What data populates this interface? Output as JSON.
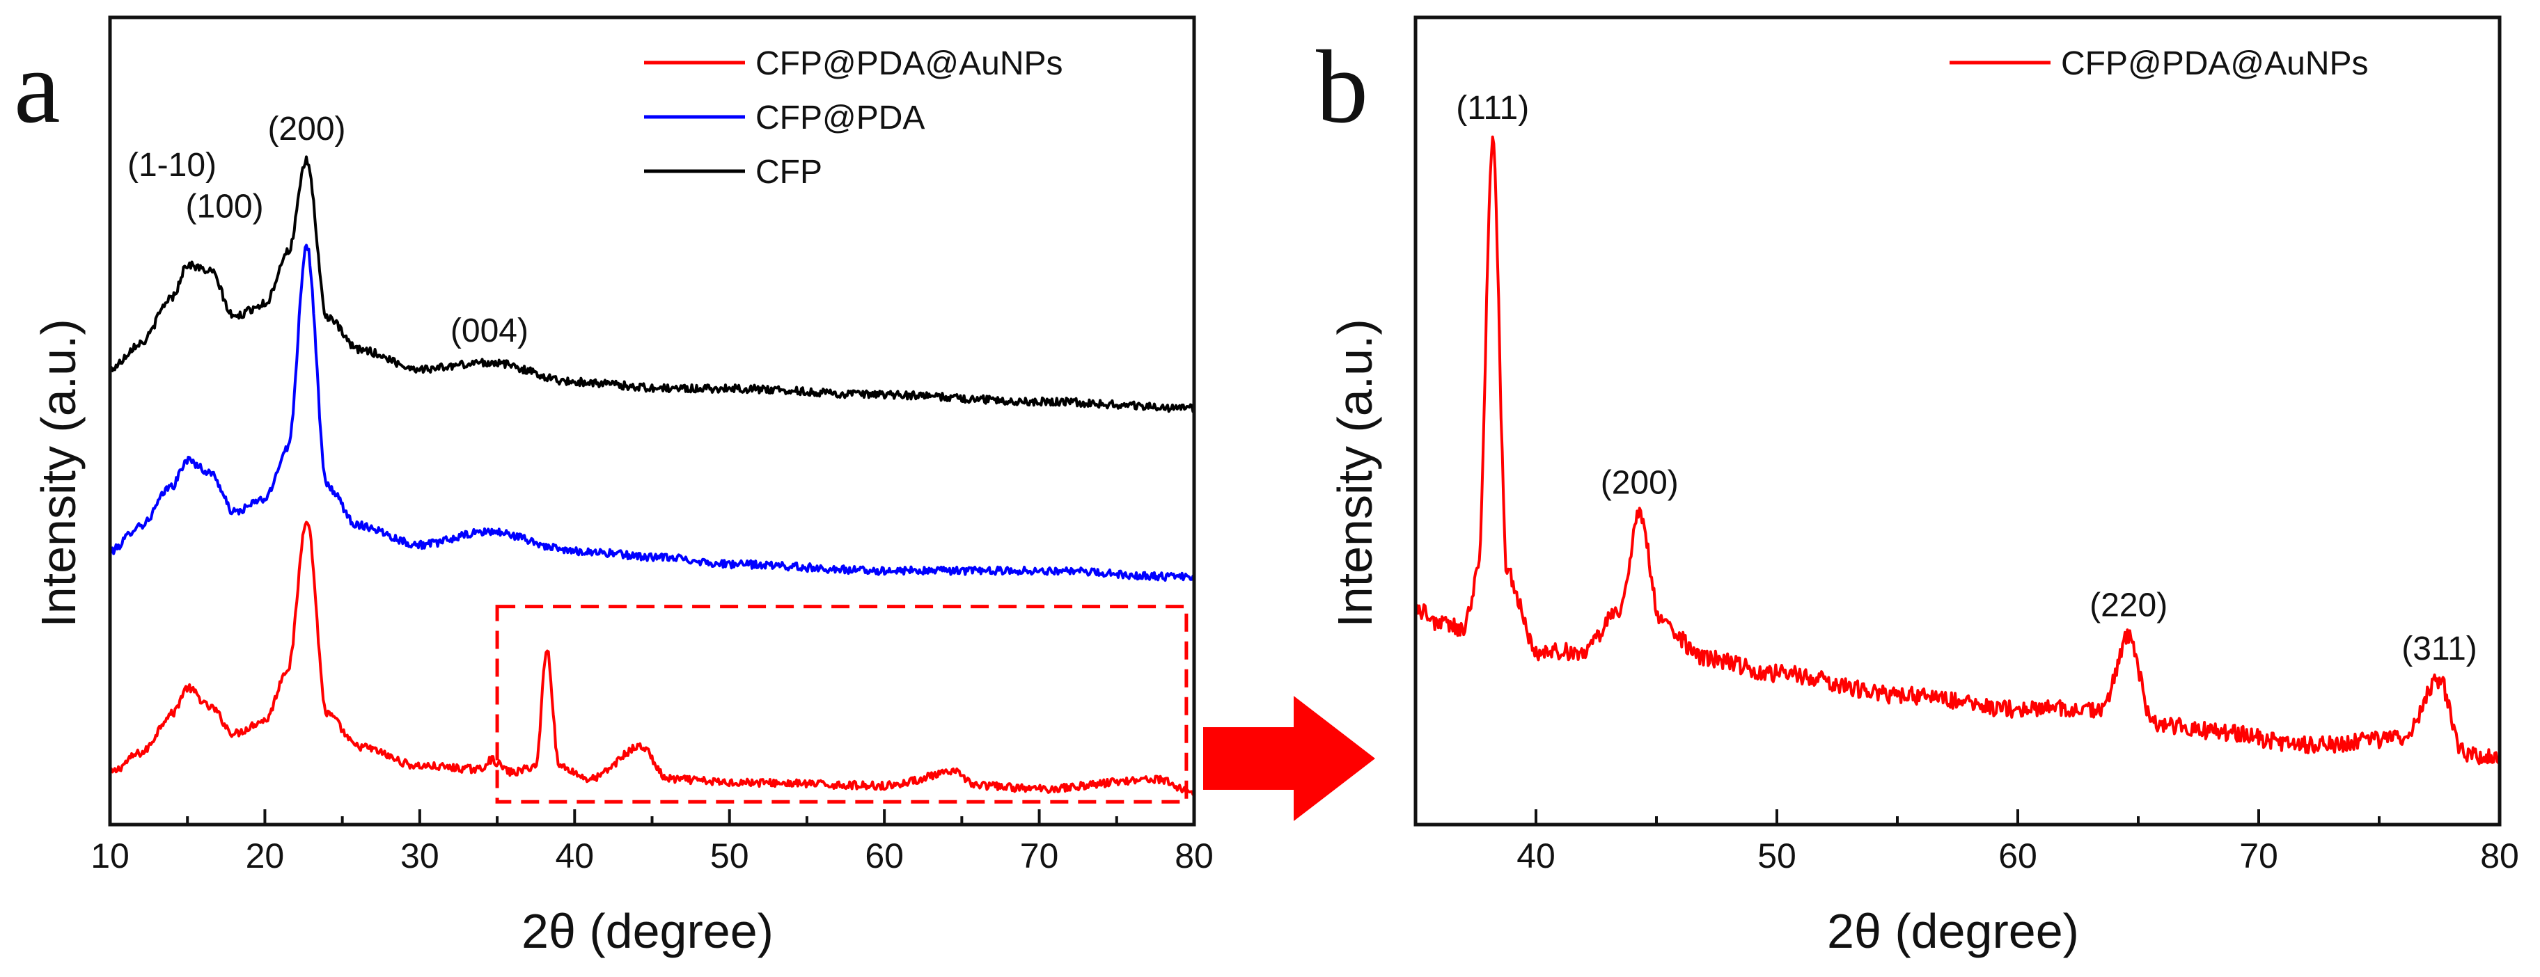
{
  "chart_data": [
    {
      "panel": "a",
      "type": "line",
      "xlabel": "2θ (degree)",
      "ylabel": "Intensity (a.u.)",
      "xlim": [
        10,
        80
      ],
      "xticks": [
        10,
        20,
        30,
        40,
        50,
        60,
        70,
        80
      ],
      "yticks_shown": false,
      "legend_position": "top-right",
      "series": [
        {
          "name": "CFP@PDA@AuNPs",
          "color": "#ff0000",
          "baseline": 0.05,
          "x": [
            10,
            12,
            14,
            15,
            16.5,
            18,
            20,
            21.5,
            22.7,
            24,
            26,
            30,
            34,
            34.5,
            36,
            37.5,
            38.2,
            39,
            41,
            44.3,
            46,
            50,
            60,
            64.6,
            66,
            70,
            77.5,
            80
          ],
          "y": [
            0.06,
            0.09,
            0.15,
            0.19,
            0.16,
            0.12,
            0.14,
            0.22,
            0.45,
            0.15,
            0.1,
            0.07,
            0.065,
            0.08,
            0.06,
            0.07,
            0.25,
            0.07,
            0.05,
            0.1,
            0.05,
            0.045,
            0.04,
            0.06,
            0.04,
            0.035,
            0.05,
            0.03
          ]
        },
        {
          "name": "CFP@PDA",
          "color": "#0000ff",
          "baseline": 0.36,
          "x": [
            10,
            12,
            14,
            15,
            16.5,
            18,
            20,
            21.5,
            22.7,
            24,
            26,
            30,
            34.5,
            40,
            46,
            50,
            60,
            70,
            80
          ],
          "y": [
            0.4,
            0.44,
            0.5,
            0.54,
            0.52,
            0.46,
            0.48,
            0.56,
            0.87,
            0.5,
            0.44,
            0.41,
            0.43,
            0.4,
            0.39,
            0.38,
            0.37,
            0.37,
            0.36
          ]
        },
        {
          "name": "CFP",
          "color": "#000000",
          "baseline": 0.62,
          "x": [
            10,
            12,
            14,
            15,
            16.5,
            18,
            20,
            21.5,
            22.7,
            24,
            26,
            30,
            34.5,
            40,
            46,
            50,
            60,
            70,
            80
          ],
          "y": [
            0.68,
            0.72,
            0.79,
            0.84,
            0.83,
            0.76,
            0.78,
            0.86,
            1.0,
            0.76,
            0.71,
            0.68,
            0.69,
            0.66,
            0.65,
            0.65,
            0.64,
            0.63,
            0.62
          ]
        }
      ],
      "annotations": [
        {
          "text": "(1-10)",
          "x": 14.9,
          "y": 0.88
        },
        {
          "text": "(100)",
          "x": 16.5,
          "y": 0.87
        },
        {
          "text": "(200)",
          "x": 22.7,
          "y": 1.0
        },
        {
          "text": "(004)",
          "x": 34.5,
          "y": 0.69
        }
      ],
      "zoom_box": {
        "x": [
          35,
          79.5
        ],
        "y": [
          0.015,
          0.315
        ]
      }
    },
    {
      "panel": "b",
      "type": "line",
      "xlabel": "2θ (degree)",
      "ylabel": "Intensity (a.u.)",
      "xlim": [
        35,
        80
      ],
      "xticks": [
        40,
        50,
        60,
        70,
        80
      ],
      "yticks_shown": false,
      "legend_position": "top-right",
      "series": [
        {
          "name": "CFP@PDA@AuNPs",
          "color": "#ff0000",
          "x": [
            35,
            36,
            37,
            37.6,
            38.2,
            38.8,
            40,
            42,
            43.5,
            44.3,
            45.2,
            47,
            50,
            55,
            60,
            63.5,
            64.6,
            65.6,
            68,
            72,
            76,
            77.5,
            78.5,
            80
          ],
          "y": [
            0.3,
            0.28,
            0.27,
            0.35,
            0.95,
            0.35,
            0.24,
            0.24,
            0.3,
            0.43,
            0.28,
            0.23,
            0.21,
            0.18,
            0.16,
            0.16,
            0.26,
            0.14,
            0.13,
            0.11,
            0.12,
            0.2,
            0.1,
            0.09
          ]
        }
      ],
      "annotations": [
        {
          "text": "(111)",
          "x": 38.2,
          "y": 0.95
        },
        {
          "text": "(200)",
          "x": 44.3,
          "y": 0.43
        },
        {
          "text": "(220)",
          "x": 64.6,
          "y": 0.26
        },
        {
          "text": "(311)",
          "x": 77.5,
          "y": 0.2
        }
      ]
    }
  ]
}
